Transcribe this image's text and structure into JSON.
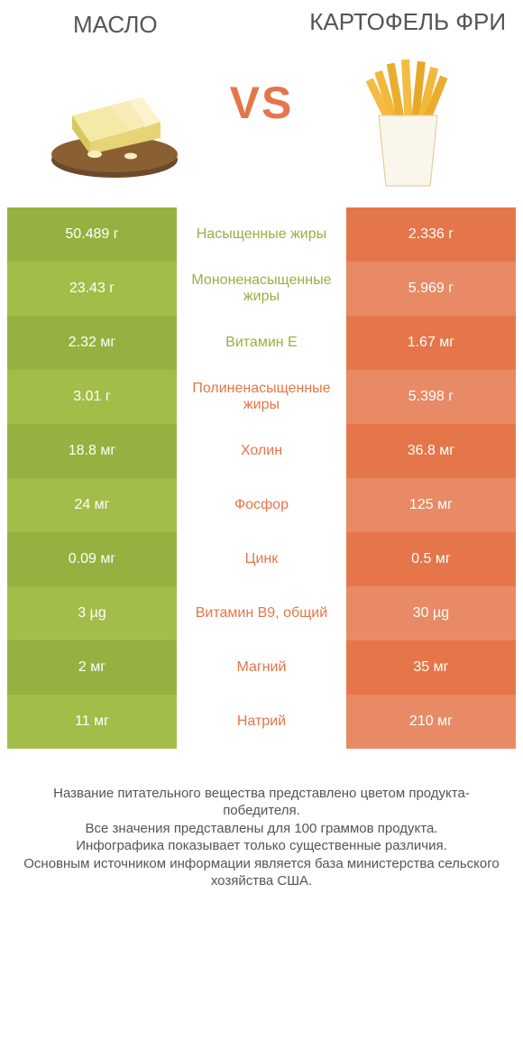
{
  "colors": {
    "green_dark": "#95b13f",
    "green_light": "#a3bd49",
    "orange_dark": "#e5764a",
    "orange_light": "#e88a65",
    "text_gray": "#555555",
    "bg": "#ffffff"
  },
  "fonts": {
    "title_size": 26,
    "vs_size": 50,
    "cell_size": 16,
    "footer_size": 15
  },
  "products": {
    "left": {
      "title": "МАСЛО"
    },
    "right": {
      "title": "КАРТОФЕЛЬ ФРИ"
    }
  },
  "vs_label": "VS",
  "rows": [
    {
      "left": "50.489 г",
      "center": "Насыщенные жиры",
      "right": "2.336 г",
      "winner": "left"
    },
    {
      "left": "23.43 г",
      "center": "Мононенасыщенные жиры",
      "right": "5.969 г",
      "winner": "left"
    },
    {
      "left": "2.32 мг",
      "center": "Витамин E",
      "right": "1.67 мг",
      "winner": "left"
    },
    {
      "left": "3.01 г",
      "center": "Полиненасыщенные жиры",
      "right": "5.398 г",
      "winner": "right"
    },
    {
      "left": "18.8 мг",
      "center": "Холин",
      "right": "36.8 мг",
      "winner": "right"
    },
    {
      "left": "24 мг",
      "center": "Фосфор",
      "right": "125 мг",
      "winner": "right"
    },
    {
      "left": "0.09 мг",
      "center": "Цинк",
      "right": "0.5 мг",
      "winner": "right"
    },
    {
      "left": "3 µg",
      "center": "Витамин B9, общий",
      "right": "30 µg",
      "winner": "right"
    },
    {
      "left": "2 мг",
      "center": "Магний",
      "right": "35 мг",
      "winner": "right"
    },
    {
      "left": "11 мг",
      "center": "Натрий",
      "right": "210 мг",
      "winner": "right"
    }
  ],
  "stripe": {
    "even_shade": "dark",
    "odd_shade": "light"
  },
  "footer": {
    "line1": "Название питательного вещества представлено цветом продукта-победителя.",
    "line2": "Все значения представлены для 100 граммов продукта.",
    "line3": "Инфографика показывает только существенные различия.",
    "line4": "Основным источником информации является база министерства сельского хозяйства США."
  }
}
